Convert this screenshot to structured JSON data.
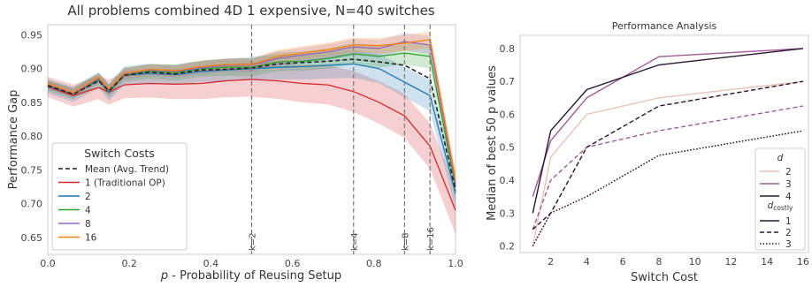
{
  "chart_data": [
    {
      "type": "line",
      "title": "All problems combined 4D 1 expensive, N=40 switches",
      "xlabel_italic": "p",
      "xlabel": " - Probability of Reusing Setup",
      "ylabel": "Performance Gap",
      "xlim": [
        0,
        1
      ],
      "ylim": [
        0.625,
        0.965
      ],
      "xticks": [
        "0.0",
        "0.2",
        "0.4",
        "0.6",
        "0.8",
        "1.0"
      ],
      "yticks": [
        "0.65",
        "0.70",
        "0.75",
        "0.80",
        "0.85",
        "0.90",
        "0.95"
      ],
      "grid": false,
      "legend": {
        "title": "Switch Costs",
        "placement": "lower-left"
      },
      "vlines": [
        {
          "x": 0.5,
          "label": "k=2"
        },
        {
          "x": 0.75,
          "label": "k=4"
        },
        {
          "x": 0.875,
          "label": "k=8"
        },
        {
          "x": 0.9375,
          "label": "k=16"
        }
      ],
      "x": [
        0.0,
        0.0625,
        0.125,
        0.15,
        0.1875,
        0.25,
        0.3125,
        0.375,
        0.4375,
        0.5,
        0.5625,
        0.625,
        0.6875,
        0.75,
        0.8125,
        0.875,
        0.9375,
        1.0
      ],
      "series": [
        {
          "name": "Mean (Avg. Trend)",
          "color": "#222222",
          "dash": "5,3",
          "band": 0,
          "values": [
            0.875,
            0.862,
            0.882,
            0.867,
            0.89,
            0.895,
            0.892,
            0.898,
            0.899,
            0.901,
            0.907,
            0.909,
            0.911,
            0.914,
            0.91,
            0.905,
            0.885,
            0.72
          ]
        },
        {
          "name": "1 (Traditional OP)",
          "color": "#d62728",
          "band": 0.025,
          "values": [
            0.873,
            0.86,
            0.872,
            0.865,
            0.876,
            0.878,
            0.877,
            0.878,
            0.882,
            0.884,
            0.882,
            0.878,
            0.876,
            0.866,
            0.85,
            0.83,
            0.785,
            0.69
          ]
        },
        {
          "name": "2",
          "color": "#1f77b4",
          "band": 0.017,
          "values": [
            0.874,
            0.862,
            0.883,
            0.865,
            0.89,
            0.893,
            0.891,
            0.896,
            0.898,
            0.9,
            0.902,
            0.903,
            0.905,
            0.907,
            0.9,
            0.88,
            0.86,
            0.715
          ]
        },
        {
          "name": "4",
          "color": "#2ca02c",
          "band": 0.013,
          "values": [
            0.875,
            0.863,
            0.885,
            0.867,
            0.891,
            0.896,
            0.894,
            0.9,
            0.902,
            0.902,
            0.91,
            0.911,
            0.915,
            0.922,
            0.918,
            0.923,
            0.918,
            0.725
          ]
        },
        {
          "name": "8",
          "color": "#9467bd",
          "band": 0.01,
          "values": [
            0.876,
            0.863,
            0.886,
            0.868,
            0.892,
            0.898,
            0.896,
            0.901,
            0.905,
            0.905,
            0.915,
            0.92,
            0.925,
            0.932,
            0.93,
            0.94,
            0.935,
            0.73
          ]
        },
        {
          "name": "16",
          "color": "#ff7f0e",
          "band": 0.009,
          "values": [
            0.877,
            0.864,
            0.887,
            0.869,
            0.893,
            0.899,
            0.897,
            0.903,
            0.906,
            0.906,
            0.918,
            0.923,
            0.928,
            0.935,
            0.934,
            0.938,
            0.943,
            0.735
          ]
        }
      ]
    },
    {
      "type": "line",
      "title": "Performance Analysis",
      "xlabel": "Switch Cost",
      "ylabel": "Median of best 50 p values",
      "xlim": [
        0.3,
        16.3
      ],
      "ylim": [
        0.18,
        0.84
      ],
      "xticks": [
        2,
        4,
        6,
        8,
        10,
        12,
        14,
        16
      ],
      "yticks": [
        0.2,
        0.3,
        0.4,
        0.5,
        0.6,
        0.7,
        0.8
      ],
      "grid": false,
      "legend": {
        "placement": "lower-right",
        "title_d": "d",
        "title_dcostly_base": "d",
        "title_dcostly_sub": "costly"
      },
      "x": [
        1,
        2,
        4,
        8,
        16
      ],
      "series": [
        {
          "d": "2",
          "d_costly": "1",
          "color": "#e8c4b8",
          "dash": "",
          "values": [
            0.2,
            0.47,
            0.6,
            0.65,
            0.7
          ]
        },
        {
          "d": "2",
          "d_costly": "2",
          "color": "#e8c4b8",
          "dash": "5,3",
          "values": [
            0.2,
            0.3,
            0.5,
            0.625,
            0.7
          ]
        },
        {
          "d": "2",
          "d_costly": "3",
          "color": "#e8c4b8",
          "dash": "1.5,2",
          "values": [
            0.2,
            0.3,
            0.35,
            0.475,
            0.55
          ]
        },
        {
          "d": "3",
          "d_costly": "1",
          "color": "#a05a9a",
          "dash": "",
          "values": [
            0.35,
            0.52,
            0.65,
            0.775,
            0.8
          ]
        },
        {
          "d": "3",
          "d_costly": "2",
          "color": "#a05a9a",
          "dash": "5,3",
          "values": [
            0.25,
            0.4,
            0.5,
            0.55,
            0.625
          ]
        },
        {
          "d": "3",
          "d_costly": "3",
          "color": "#a05a9a",
          "dash": "1.5,2",
          "values": [
            0.2,
            0.3,
            0.35,
            0.475,
            0.55
          ]
        },
        {
          "d": "4",
          "d_costly": "1",
          "color": "#2b1533",
          "dash": "",
          "values": [
            0.3,
            0.55,
            0.675,
            0.75,
            0.8
          ]
        },
        {
          "d": "4",
          "d_costly": "2",
          "color": "#2b1533",
          "dash": "5,3",
          "values": [
            0.25,
            0.3,
            0.5,
            0.625,
            0.7
          ]
        },
        {
          "d": "4",
          "d_costly": "3",
          "color": "#2b1533",
          "dash": "1.5,2",
          "values": [
            0.2,
            0.3,
            0.35,
            0.475,
            0.55
          ]
        }
      ],
      "legend_d": [
        {
          "label": "2",
          "color": "#e8c4b8"
        },
        {
          "label": "3",
          "color": "#a05a9a"
        },
        {
          "label": "4",
          "color": "#2b1533"
        }
      ],
      "legend_dcostly": [
        {
          "label": "1",
          "dash": ""
        },
        {
          "label": "2",
          "dash": "5,3"
        },
        {
          "label": "3",
          "dash": "1.5,2"
        }
      ]
    }
  ]
}
